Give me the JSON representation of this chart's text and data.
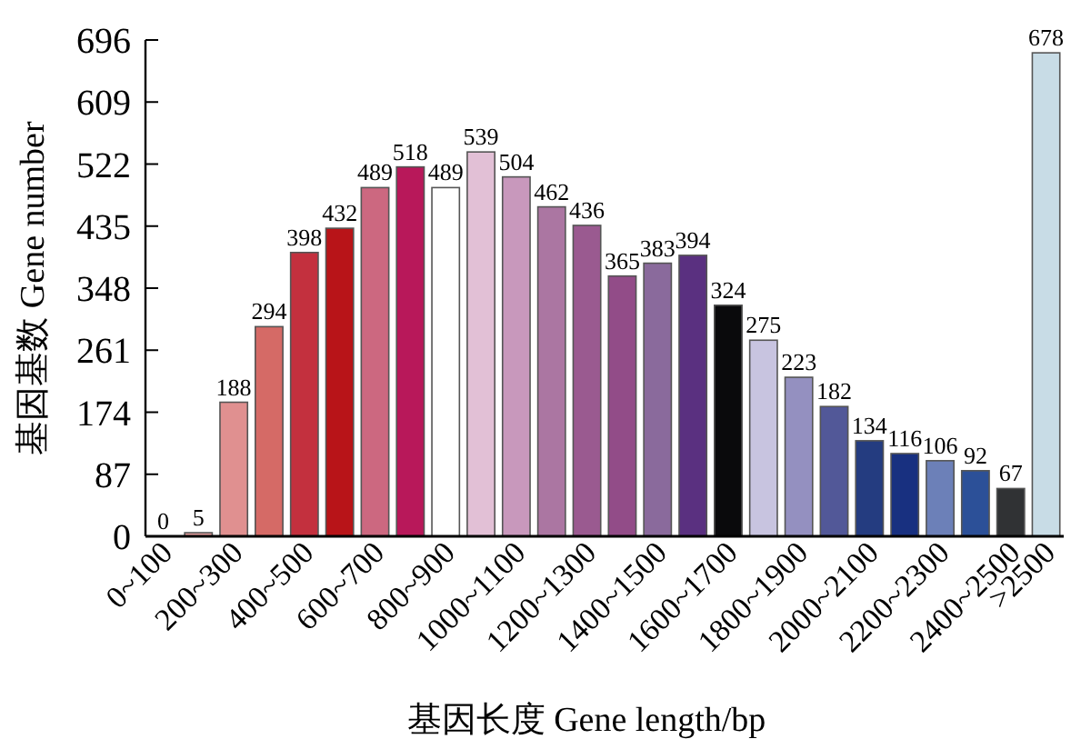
{
  "chart_data": {
    "type": "bar",
    "xlabel": "基因长度 Gene length/bp",
    "ylabel": "基因基数 Gene number",
    "categories": [
      "0~100",
      null,
      "200~300",
      null,
      "400~500",
      null,
      "600~700",
      null,
      "800~900",
      null,
      "1000~1100",
      null,
      "1200~1300",
      null,
      "1400~1500",
      null,
      "1600~1700",
      null,
      "1800~1900",
      null,
      "2000~2100",
      null,
      "2200~2300",
      null,
      "2400~2500",
      ">2500"
    ],
    "values": [
      0,
      5,
      188,
      294,
      398,
      432,
      489,
      518,
      489,
      539,
      504,
      462,
      436,
      365,
      383,
      394,
      324,
      275,
      223,
      182,
      134,
      116,
      106,
      92,
      67,
      678
    ],
    "colors": [
      "#ffffff",
      "#e8a0a0",
      "#e09090",
      "#d56a66",
      "#c3303e",
      "#b81418",
      "#cc6880",
      "#b8185a",
      "#ffffff",
      "#e2c0d6",
      "#c898bc",
      "#ab76a2",
      "#9a5a90",
      "#924c88",
      "#8a6a9c",
      "#5a3080",
      "#0a0a0c",
      "#c8c4e0",
      "#9490c0",
      "#525898",
      "#243c80",
      "#183080",
      "#6c80b8",
      "#2c5098",
      "#303234",
      "#c8dce6"
    ],
    "ylim": [
      0,
      696
    ],
    "yticks": [
      0,
      87,
      174,
      261,
      348,
      435,
      522,
      609,
      696
    ],
    "data_labels": true,
    "grid": false
  }
}
